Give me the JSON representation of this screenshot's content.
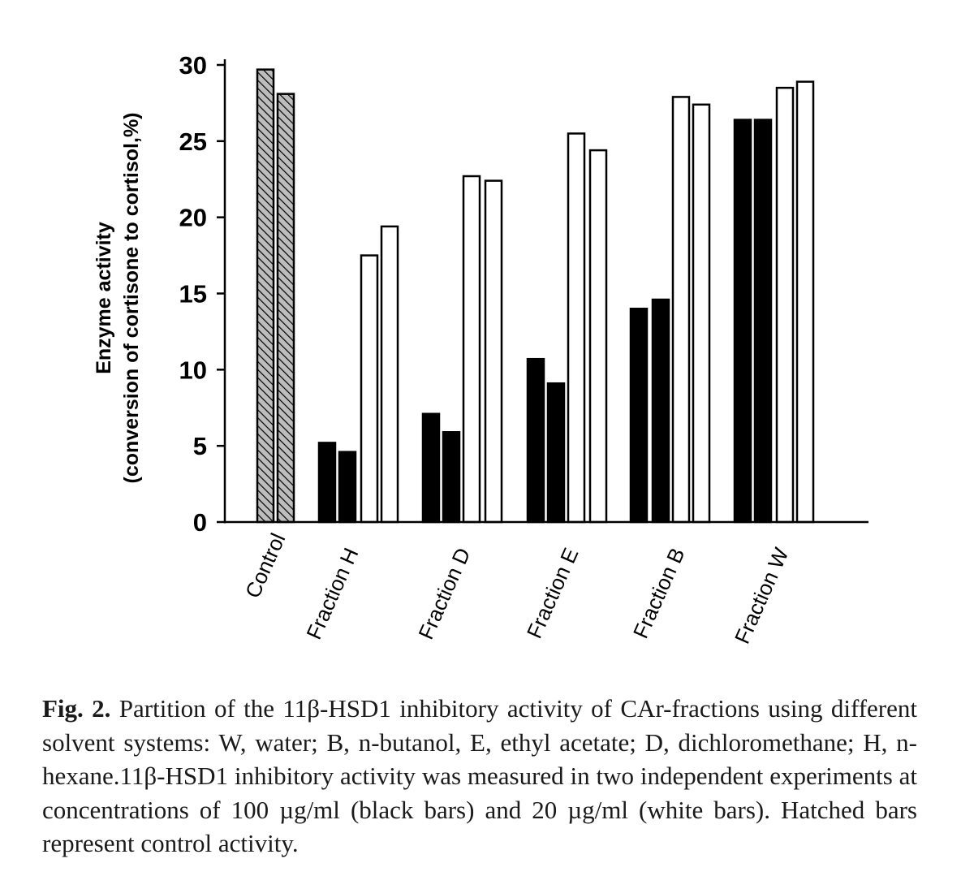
{
  "chart_data": {
    "type": "bar",
    "categories": [
      "Control",
      "Fraction H",
      "Fraction D",
      "Fraction E",
      "Fraction B",
      "Fraction W"
    ],
    "ylabel_line1": "Enzyme activity",
    "ylabel_line2": "(conversion of cortisone to cortisol,%)",
    "xlabel": "",
    "ylim": [
      0,
      30
    ],
    "yticks": [
      0,
      5,
      10,
      15,
      20,
      25,
      30
    ],
    "series": [
      {
        "name": "Control (hatched)",
        "style": "hatched",
        "values": [
          [
            29.7,
            28.1
          ],
          null,
          null,
          null,
          null,
          null
        ]
      },
      {
        "name": "100 µg/ml (black bars)",
        "style": "black",
        "values": [
          null,
          [
            5.2,
            4.6
          ],
          [
            7.1,
            5.9
          ],
          [
            10.7,
            9.1
          ],
          [
            14.0,
            14.6
          ],
          [
            26.4,
            26.4
          ]
        ]
      },
      {
        "name": "20 µg/ml (white bars)",
        "style": "white",
        "values": [
          null,
          [
            17.5,
            19.4
          ],
          [
            22.7,
            22.4
          ],
          [
            25.5,
            24.4
          ],
          [
            27.9,
            27.4
          ],
          [
            28.5,
            28.9
          ]
        ]
      }
    ],
    "colors": {
      "black": "#000000",
      "white": "#ffffff",
      "hatch_fill": "#bdbdbd"
    }
  },
  "caption": {
    "label": "Fig. 2.",
    "text": "Partition of the 11β-HSD1 inhibitory activity of CAr-fractions using different solvent systems: W, water; B, n-butanol, E, ethyl acetate; D, dichloromethane; H, n-hexane.11β-HSD1 inhibitory activity was mea­sured in two independent experiments at concentrations of 100 µg/ml (black bars) and 20 µg/ml (white bars). Hatched bars represent control activity."
  }
}
